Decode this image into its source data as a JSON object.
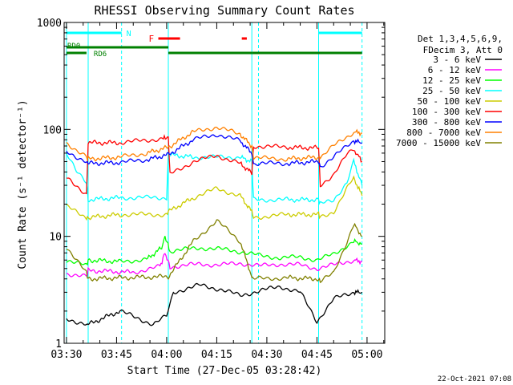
{
  "chart_data": {
    "type": "line",
    "title": "RHESSI Observing Summary Count Rates",
    "xlabel": "Start Time (27-Dec-05 03:28:42)",
    "ylabel": "Count Rate (s⁻¹ detector⁻¹)",
    "y_scale": "log",
    "ylim": [
      1,
      1000
    ],
    "xlim_minutes": [
      -0.7,
      95.3
    ],
    "x_ticks": [
      {
        "label": "03:30",
        "t": 0
      },
      {
        "label": "03:45",
        "t": 15
      },
      {
        "label": "04:00",
        "t": 30
      },
      {
        "label": "04:15",
        "t": 45
      },
      {
        "label": "04:30",
        "t": 60
      },
      {
        "label": "04:45",
        "t": 75
      },
      {
        "label": "05:00",
        "t": 90
      }
    ],
    "y_ticks": [
      {
        "label": "1",
        "v": 1
      },
      {
        "label": "10",
        "v": 10
      },
      {
        "label": "100",
        "v": 100
      },
      {
        "label": "1000",
        "v": 1000
      }
    ],
    "legend_position": "right",
    "legend_header": [
      "Det 1,3,4,5,6,9,",
      "FDecim 3, Att 0"
    ],
    "time_markers": {
      "solid": [
        0,
        6.5,
        30.5,
        55.5,
        75.5
      ],
      "dashed": [
        16.5,
        57.5,
        88.5
      ]
    },
    "state_bars": {
      "night": {
        "label": "N",
        "color": "#00ffff",
        "segments": [
          [
            0,
            16.5
          ],
          [
            75.5,
            88.5
          ]
        ]
      },
      "flare": {
        "label": "F",
        "color": "#ff0000",
        "segments": [
          [
            27.5,
            34
          ],
          [
            52.5,
            54
          ]
        ]
      },
      "rd_upper": {
        "label": "RD0",
        "color": "#008000",
        "segments": [
          [
            0,
            30.5
          ]
        ]
      },
      "rd_lower": {
        "label": "RD6",
        "color": "#008000",
        "segments": [
          [
            0,
            6
          ],
          [
            30.5,
            55.5
          ],
          [
            55.5,
            75.5
          ],
          [
            75.5,
            88.5
          ]
        ]
      }
    },
    "series": [
      {
        "name": "3 - 6 keV",
        "color": "#000000",
        "t": [
          0,
          6,
          6.5,
          16,
          26,
          30,
          32,
          40,
          46,
          52,
          58,
          64,
          70,
          75,
          80,
          86,
          88.5
        ],
        "v": [
          1.7,
          1.5,
          1.5,
          2.0,
          1.5,
          1.8,
          3.0,
          3.5,
          3.2,
          2.8,
          3.1,
          3.4,
          3.0,
          1.6,
          2.6,
          3.0,
          3.0
        ]
      },
      {
        "name": "6 - 12 keV",
        "color": "#ff00ff",
        "t": [
          0,
          6,
          6.5,
          20,
          28,
          29.5,
          31,
          40,
          46,
          52,
          58,
          64,
          70,
          75,
          80,
          86,
          88.5
        ],
        "v": [
          4.5,
          4.2,
          4.8,
          4.6,
          5.2,
          7.0,
          5.2,
          5.5,
          5.4,
          5.6,
          5.3,
          5.5,
          5.4,
          5.0,
          5.4,
          6.0,
          5.8
        ]
      },
      {
        "name": "12 - 25 keV",
        "color": "#00ff00",
        "t": [
          0,
          6,
          6.5,
          16,
          24,
          28.5,
          29.5,
          31,
          40,
          46,
          52,
          58,
          64,
          70,
          75,
          80,
          86,
          88.5
        ],
        "v": [
          6.0,
          5.3,
          6.0,
          5.8,
          6.1,
          7.8,
          10.0,
          7.3,
          7.8,
          7.6,
          7.2,
          6.6,
          6.3,
          6.4,
          6.0,
          6.8,
          9.0,
          8.5
        ]
      },
      {
        "name": "25 - 50 keV",
        "color": "#00ffff",
        "t": [
          0,
          3,
          6,
          6.5,
          16,
          30,
          30.5,
          38,
          45,
          52,
          55.5,
          56,
          66,
          75.5,
          76,
          80,
          84,
          86,
          88.5
        ],
        "v": [
          60,
          40,
          32,
          22,
          23,
          23,
          58,
          55,
          55,
          55,
          50,
          22,
          22,
          22,
          20,
          22,
          32,
          50,
          30
        ]
      },
      {
        "name": "50 - 100 keV",
        "color": "#cccc00",
        "t": [
          0,
          6,
          6.5,
          16,
          30,
          30.5,
          38,
          45,
          52,
          55.5,
          56,
          66,
          75.5,
          76,
          80,
          84,
          86,
          88.5
        ],
        "v": [
          19,
          15,
          15,
          16,
          16,
          17,
          23,
          28,
          24,
          17,
          15,
          16,
          16,
          15,
          17,
          28,
          35,
          24
        ]
      },
      {
        "name": "100 - 300 keV",
        "color": "#ff0000",
        "t": [
          0,
          6,
          6.5,
          16,
          29,
          30.5,
          31,
          38,
          45,
          52,
          55.5,
          56,
          66,
          75.5,
          76,
          80,
          84,
          86,
          88.5
        ],
        "v": [
          35,
          25,
          75,
          75,
          82,
          85,
          38,
          50,
          57,
          48,
          39,
          70,
          68,
          67,
          30,
          38,
          58,
          65,
          50
        ]
      },
      {
        "name": "300 - 800 keV",
        "color": "#0000ff",
        "t": [
          0,
          6,
          6.5,
          16,
          24,
          30.5,
          38,
          45,
          52,
          55.5,
          56,
          66,
          75.5,
          76,
          80,
          84,
          86,
          88.5
        ],
        "v": [
          62,
          50,
          48,
          49,
          52,
          58,
          80,
          90,
          78,
          60,
          48,
          48,
          50,
          45,
          55,
          70,
          78,
          75
        ]
      },
      {
        "name": "800 - 7000 keV",
        "color": "#ff8000",
        "t": [
          0,
          6,
          6.5,
          16,
          24,
          30.5,
          38,
          45,
          52,
          55.5,
          56,
          66,
          75.5,
          76,
          80,
          84,
          86,
          88.5
        ],
        "v": [
          75,
          55,
          53,
          55,
          60,
          68,
          95,
          105,
          90,
          70,
          54,
          53,
          55,
          55,
          70,
          85,
          95,
          92
        ]
      },
      {
        "name": "7000 - 15000 keV",
        "color": "#808000",
        "t": [
          0,
          3,
          6,
          6.5,
          16,
          30.5,
          38,
          45,
          52,
          55.5,
          56,
          66,
          75.5,
          76,
          80,
          84,
          86,
          88.5
        ],
        "v": [
          8,
          6,
          4.5,
          4.0,
          4.1,
          4.2,
          9.0,
          14.0,
          9.0,
          4.2,
          4.0,
          4.1,
          4.0,
          3.8,
          4.5,
          9.0,
          13.0,
          10.0
        ]
      }
    ]
  },
  "footer": {
    "timestamp": "22-Oct-2021 07:08"
  }
}
